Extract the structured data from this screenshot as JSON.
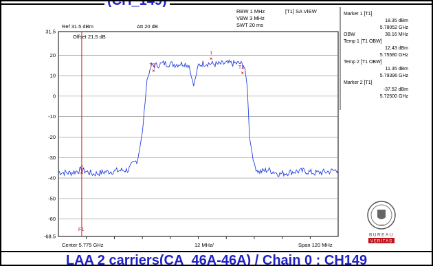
{
  "header": {
    "title_peek": "(CH_149)"
  },
  "settings": {
    "ref": "Ref 31.5 dBm",
    "att": "Att  20 dB",
    "rbw": "RBW 1 MHz",
    "vbw": "VBW 3 MHz",
    "swt": "SWT 20 ms",
    "view": "[T1] SA VIEW",
    "offset": "Offset 21.5 dB"
  },
  "markers_panel": [
    {
      "label": "Marker 1 [T1]",
      "left": "",
      "value": ""
    },
    {
      "label": "",
      "left": "",
      "value": "18.35 dBm"
    },
    {
      "label": "",
      "left": "",
      "value": "5.78052 GHz"
    },
    {
      "label": "",
      "left": "OBW",
      "value": "38.16 MHz"
    },
    {
      "label": "Temp 1 [T1 OBW]",
      "left": "",
      "value": ""
    },
    {
      "label": "",
      "left": "",
      "value": "12.43 dBm"
    },
    {
      "label": "",
      "left": "",
      "value": "5.75580 GHz"
    },
    {
      "label": "Temp 2 [T1 OBW]",
      "left": "",
      "value": ""
    },
    {
      "label": "",
      "left": "",
      "value": "11.35 dBm"
    },
    {
      "label": "",
      "left": "",
      "value": "5.79396 GHz"
    },
    {
      "label": "Marker 2 [T1]",
      "left": "",
      "value": ""
    },
    {
      "label": "",
      "left": "",
      "value": "-37.52 dBm"
    },
    {
      "label": "",
      "left": "",
      "value": "5.72500 GHz"
    }
  ],
  "footer": {
    "center": "Center 5.775 GHz",
    "div": "12 MHz/",
    "span": "Span 120 MHz"
  },
  "logo": {
    "text_top": "BUREAU",
    "text_bottom": "VERITAS",
    "year": "1828"
  },
  "caption": "LAA 2 carriers(CA_46A-46A) / Chain 0 : CH149",
  "chart_data": {
    "type": "line",
    "title": "",
    "xlabel": "",
    "ylabel": "",
    "ylim": [
      -68.5,
      31.5
    ],
    "xlim_mhz": [
      -60,
      60
    ],
    "yticks": [
      "31.5",
      "20",
      "10",
      "0",
      "-10",
      "-20",
      "-30",
      "-40",
      "-50",
      "-60",
      "-68.5"
    ],
    "ytick_values": [
      31.5,
      20,
      10,
      0,
      -10,
      -20,
      -30,
      -40,
      -50,
      -60,
      -68.5
    ],
    "line_color": "#1f3fe0",
    "display_line_color": "#d02020",
    "series": [
      {
        "name": "",
        "x_mhz": [
          -60,
          -55,
          -50,
          -45,
          -40,
          -35,
          -30,
          -28,
          -26,
          -24,
          -22,
          -20,
          -18,
          -15,
          -10,
          -6,
          -4,
          -3,
          -2,
          -1,
          0,
          2,
          4,
          8,
          12,
          16,
          18,
          19.5,
          20,
          21,
          22,
          24,
          26,
          30,
          35,
          40,
          45,
          50,
          55,
          60
        ],
        "y_dbm": [
          -37,
          -37.5,
          -36,
          -38,
          -37,
          -36.5,
          -36,
          -33,
          -31,
          -18,
          8,
          15,
          15,
          16,
          15.5,
          16,
          15,
          10,
          5,
          10,
          15,
          16,
          16,
          15.5,
          16,
          16,
          16,
          15,
          13,
          5,
          -20,
          -34,
          -37,
          -36,
          -38,
          -37,
          -36.5,
          -37.5,
          -37,
          -36
        ]
      }
    ],
    "markers": [
      {
        "label": "1",
        "x_mhz": 5.5,
        "y_dbm": 18.35
      },
      {
        "label": "T1",
        "x_mhz": -19.2,
        "y_dbm": 12.43
      },
      {
        "label": "T2",
        "x_mhz": 18.96,
        "y_dbm": 11.35
      },
      {
        "label": "2",
        "x_mhz": -50,
        "y_dbm": -37.52
      }
    ],
    "vertical_line": {
      "label": "F1",
      "x_mhz": -50
    }
  }
}
